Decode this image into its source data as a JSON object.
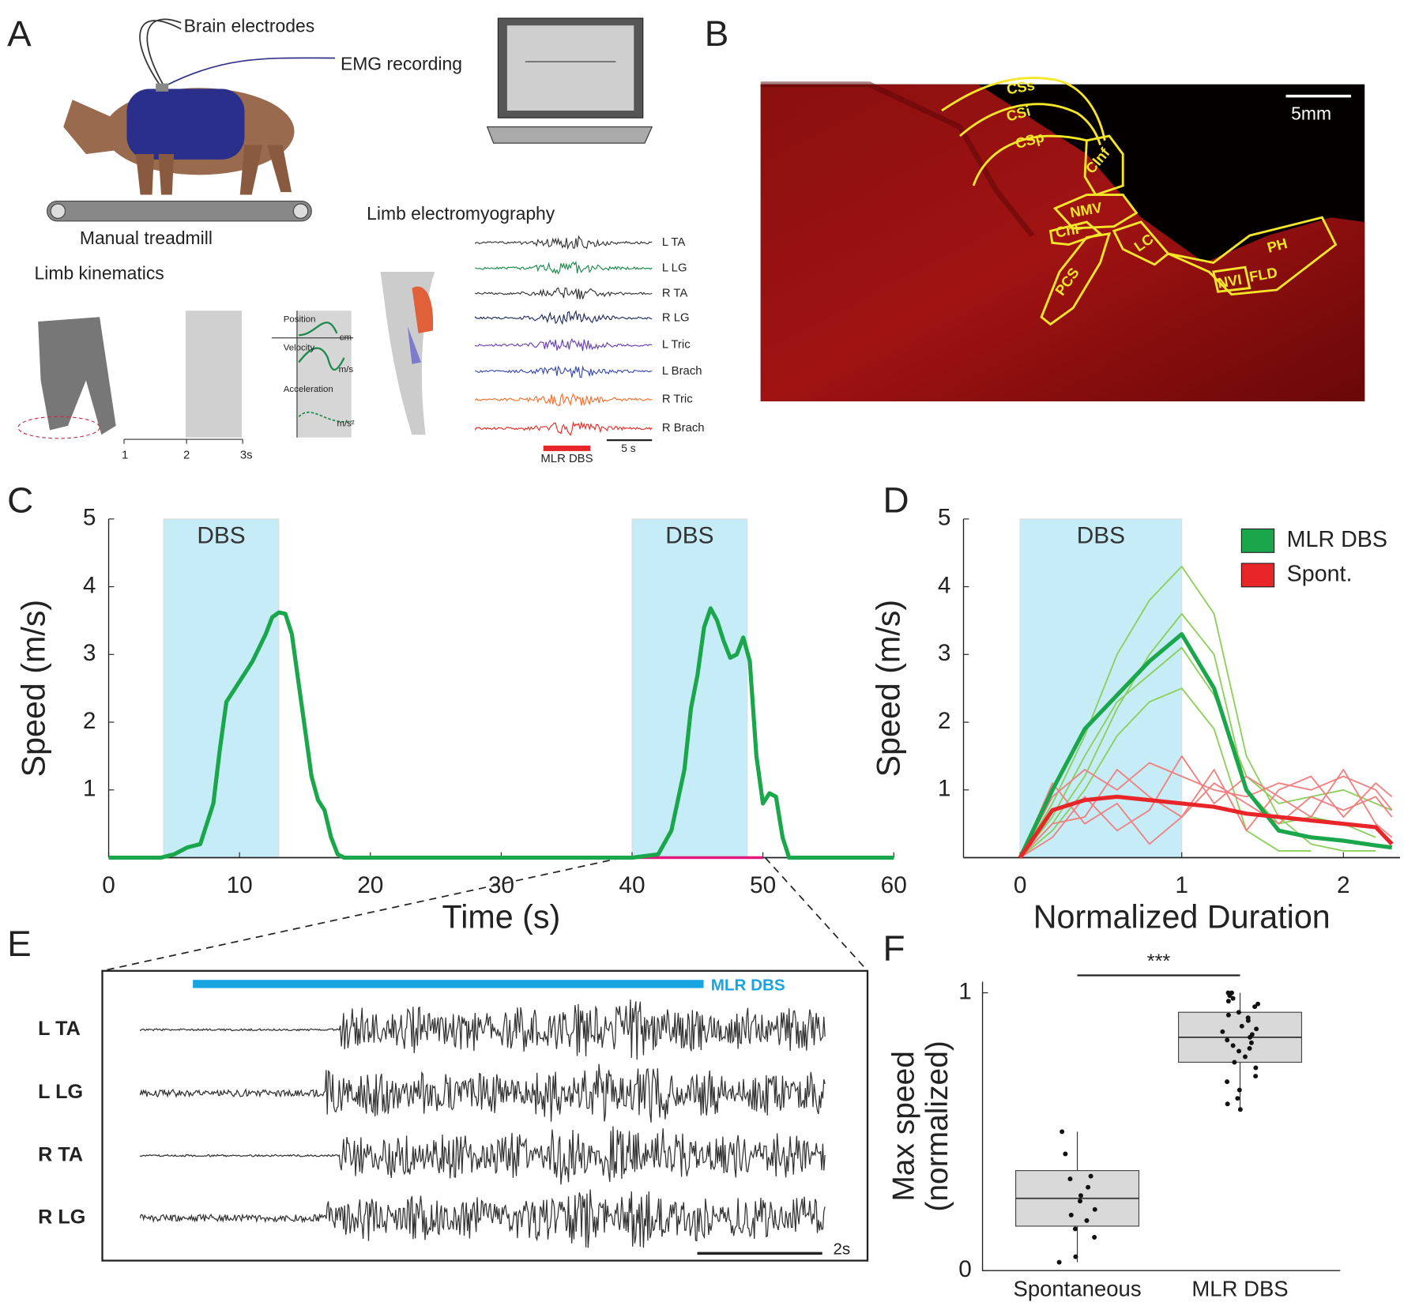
{
  "panel_labels": [
    "A",
    "B",
    "C",
    "D",
    "E",
    "F"
  ],
  "panel_a": {
    "electrodes_label": "Brain electrodes",
    "emg_label": "EMG recording",
    "treadmill_label": "Manual treadmill",
    "kinematics_title": "Limb kinematics",
    "emg_title": "Limb electromyography",
    "muscles": [
      "L TA",
      "L LG",
      "R TA",
      "R LG",
      "L Tric",
      "L Brach",
      "R Tric",
      "R Brach"
    ],
    "stim_label": "MLR DBS",
    "emg_scale": "5 s",
    "kinematics_traces": [
      "Position",
      "Velocity",
      "Acceleration"
    ],
    "kinematics_units": [
      "cm",
      "m/s",
      "m/s²"
    ],
    "time_ticks": [
      "1",
      "2",
      "3s"
    ]
  },
  "panel_b": {
    "scale_bar": "5mm",
    "regions": [
      "CSs",
      "CSi",
      "CSp",
      "CInf",
      "NMV",
      "CnF",
      "LC",
      "PCS",
      "PH",
      "NVI",
      "FLD"
    ]
  },
  "panel_e": {
    "stim_label": "MLR DBS",
    "muscles": [
      "L TA",
      "L LG",
      "R TA",
      "R LG"
    ],
    "scale_bar": "2s"
  },
  "chart_data": [
    {
      "type": "line",
      "xlabel": "Time (s)",
      "ylabel": "Speed (m/s)",
      "x": [
        0,
        4,
        5,
        6,
        7,
        8,
        8.5,
        9,
        10,
        11,
        12,
        12.5,
        13,
        13.5,
        14,
        14.5,
        15,
        15.5,
        16,
        16.5,
        17,
        17.5,
        18,
        40,
        42,
        43,
        44,
        44.5,
        45,
        45.5,
        46,
        46.5,
        47,
        47.5,
        48,
        48.5,
        49,
        49.5,
        50,
        50.5,
        51,
        51.5,
        52,
        60
      ],
      "series": [
        {
          "color": "#1aa64a",
          "values": [
            0,
            0,
            0.05,
            0.15,
            0.2,
            0.8,
            1.6,
            2.3,
            2.6,
            2.9,
            3.3,
            3.55,
            3.62,
            3.6,
            3.3,
            2.6,
            1.9,
            1.2,
            0.85,
            0.7,
            0.3,
            0.05,
            0,
            0,
            0.05,
            0.4,
            1.3,
            2.2,
            2.7,
            3.4,
            3.68,
            3.5,
            3.2,
            2.95,
            3,
            3.25,
            2.9,
            1.5,
            0.8,
            0.95,
            0.9,
            0.3,
            0,
            0
          ]
        }
      ],
      "xlim": [
        0,
        60
      ],
      "ylim": [
        0,
        5
      ],
      "xticks": [
        0,
        10,
        20,
        30,
        40,
        50,
        60
      ],
      "yticks": [
        1,
        2,
        3,
        4,
        5
      ],
      "shaded": [
        {
          "start": 4.2,
          "end": 13,
          "label": "DBS"
        },
        {
          "start": 40,
          "end": 48.8,
          "label": "DBS"
        }
      ],
      "shade_color": "#c6ecf7",
      "highlight": {
        "start": 39.5,
        "end": 50,
        "color": "#e0197d"
      }
    },
    {
      "type": "line",
      "xlabel": "Normalized Duration",
      "ylabel": "Speed (m/s)",
      "x": [
        0,
        0.2,
        0.4,
        0.6,
        0.8,
        1,
        1.2,
        1.4,
        1.6,
        1.8,
        2,
        2.2,
        2.3
      ],
      "series": [
        {
          "color": "#8ccf5a",
          "values": [
            0,
            0.5,
            1.2,
            2.2,
            3,
            3.6,
            3,
            1,
            0.5,
            0.6,
            0.5,
            0.3,
            null
          ]
        },
        {
          "color": "#8ccf5a",
          "values": [
            0,
            0.8,
            1.8,
            3,
            3.8,
            4.3,
            3.6,
            1.5,
            0.6,
            0.2,
            0.1,
            0.1,
            null
          ]
        },
        {
          "color": "#8ccf5a",
          "values": [
            0,
            0.6,
            1.5,
            2.3,
            2.7,
            3.1,
            2.4,
            1.2,
            0.8,
            0.9,
            1,
            0.8,
            0.7
          ]
        },
        {
          "color": "#8ccf5a",
          "values": [
            0,
            0.4,
            1,
            1.8,
            2.3,
            2.5,
            1.9,
            0.4,
            0.1,
            0.1,
            null,
            null,
            null
          ]
        },
        {
          "color": "#f08080",
          "values": [
            0,
            0.9,
            1.3,
            1,
            1.4,
            1.2,
            1,
            0.9,
            1.1,
            1,
            1.2,
            1,
            0.7
          ]
        },
        {
          "color": "#f08080",
          "values": [
            0,
            0.5,
            0.6,
            1.3,
            0.9,
            0.6,
            1.1,
            0.8,
            0.5,
            0.9,
            0.7,
            0.9,
            0.6
          ]
        },
        {
          "color": "#f08080",
          "values": [
            0,
            0.3,
            0.9,
            0.4,
            0.7,
            1.5,
            0.8,
            1.2,
            0.9,
            0.6,
            1.3,
            0.5,
            0.3
          ]
        },
        {
          "color": "#f08080",
          "values": [
            0,
            1.1,
            0.5,
            0.8,
            0.2,
            0.6,
            1.3,
            0.4,
            1,
            1.2,
            0.6,
            1.1,
            0.9
          ]
        },
        {
          "name": "MLR DBS",
          "color": "#1aa64a",
          "values": [
            0,
            1,
            1.9,
            2.4,
            2.9,
            3.3,
            2.5,
            1,
            0.4,
            0.3,
            0.25,
            0.18,
            0.15
          ]
        },
        {
          "name": "Spont.",
          "color": "#e8262a",
          "values": [
            0,
            0.7,
            0.85,
            0.9,
            0.85,
            0.8,
            0.75,
            0.65,
            0.6,
            0.55,
            0.5,
            0.45,
            0.2
          ]
        }
      ],
      "xlim": [
        -0.35,
        2.35
      ],
      "ylim": [
        0,
        5
      ],
      "xticks": [
        0,
        1,
        2
      ],
      "yticks": [
        1,
        2,
        3,
        4,
        5
      ],
      "shaded": [
        {
          "start": 0,
          "end": 1,
          "label": "DBS"
        }
      ],
      "shade_color": "#c6ecf7",
      "legend": "upper right"
    },
    {
      "type": "box",
      "ylabel": [
        "Max speed",
        "(normalized)"
      ],
      "categories": [
        "Spontaneous",
        "MLR DBS"
      ],
      "color": "#d9d9d9",
      "annotation": "***",
      "ylim": [
        0,
        1.04
      ],
      "yticks": [
        0,
        1
      ],
      "boxes": [
        {
          "min": 0.03,
          "q1": 0.16,
          "median": 0.26,
          "q3": 0.36,
          "max": 0.5,
          "points": [
            0.03,
            0.05,
            0.12,
            0.15,
            0.18,
            0.2,
            0.22,
            0.25,
            0.27,
            0.3,
            0.33,
            0.34,
            0.42,
            0.5
          ]
        },
        {
          "min": 0.58,
          "q1": 0.75,
          "median": 0.84,
          "q3": 0.93,
          "max": 1,
          "points": [
            0.58,
            0.6,
            0.62,
            0.65,
            0.68,
            0.7,
            0.73,
            0.75,
            0.77,
            0.79,
            0.8,
            0.81,
            0.82,
            0.83,
            0.84,
            0.85,
            0.86,
            0.87,
            0.88,
            0.9,
            0.91,
            0.92,
            0.93,
            0.95,
            0.97,
            0.98,
            1,
            1,
            0.99,
            0.96
          ]
        }
      ]
    }
  ]
}
